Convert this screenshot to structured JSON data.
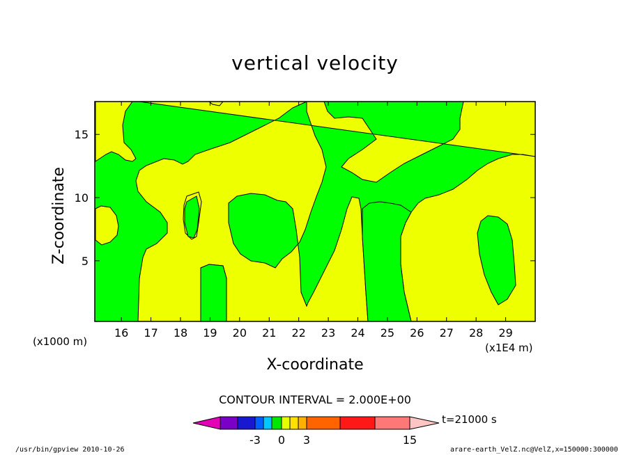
{
  "chart_data": {
    "type": "heatmap",
    "title": "vertical velocity",
    "xlabel": "X-coordinate",
    "ylabel": "Z-coordinate",
    "x_unit_label": "(x1E4 m)",
    "z_unit_label": "(x1000 m)",
    "xlim": [
      15.1,
      30.0
    ],
    "ylim": [
      0.2,
      17.6
    ],
    "x_ticks": [
      "16",
      "17",
      "18",
      "19",
      "20",
      "21",
      "22",
      "23",
      "24",
      "25",
      "26",
      "27",
      "28",
      "29"
    ],
    "y_ticks": [
      "5",
      "10",
      "15"
    ],
    "contour_interval": "CONTOUR INTERVAL = 2.000E+00",
    "time_label": "t=21000 s",
    "colorbar": {
      "colors": [
        "#e400b4",
        "#7a00c8",
        "#1818d0",
        "#0060ff",
        "#00c8ff",
        "#00e800",
        "#e6ff00",
        "#ffe000",
        "#ffb000",
        "#ff6400",
        "#ff1818",
        "#ff7878",
        "#ffc4c4"
      ],
      "tick_labels": [
        "-3",
        "0",
        "3",
        "15"
      ]
    },
    "fill_colors": {
      "negative": "#00ff00",
      "positive": "#eeff00"
    },
    "regions_note_values": {
      "green_level": "-2..0",
      "yellow_level": "0..2"
    }
  },
  "footer": {
    "left": "/usr/bin/gpview  2010-10-26",
    "right": "arare-earth_VelZ.nc@VelZ,x=150000:300000"
  }
}
